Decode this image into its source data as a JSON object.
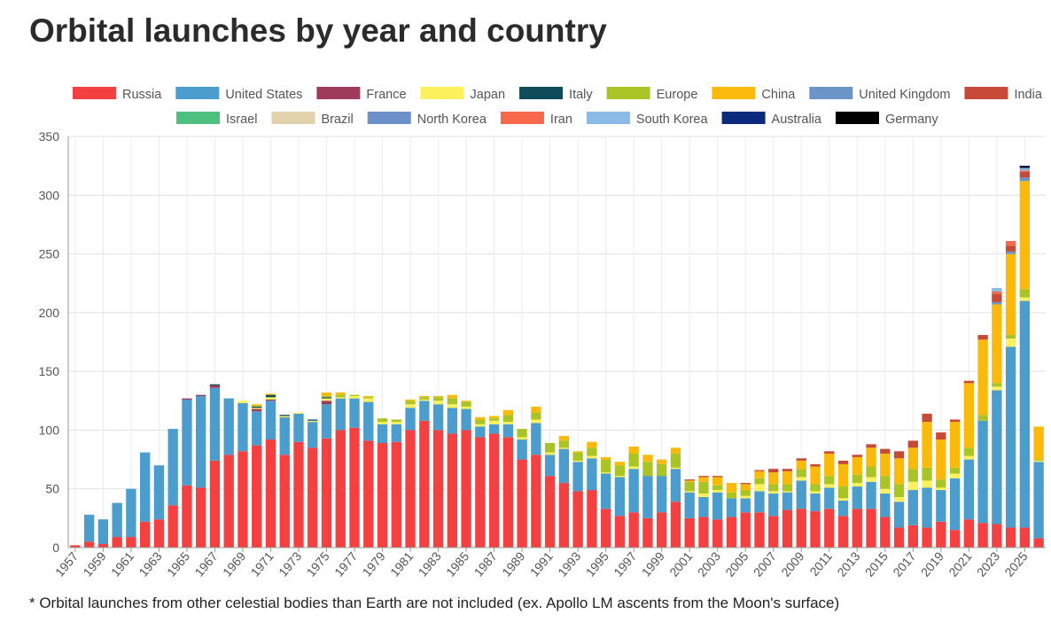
{
  "title": "Orbital launches by year and country",
  "footnote": "* Orbital launches from other celestial bodies than Earth are not included (ex. Apollo LM ascents from the Moon's surface)",
  "chart_data": {
    "type": "bar",
    "stacked": true,
    "x": [
      1957,
      1958,
      1959,
      1960,
      1961,
      1962,
      1963,
      1964,
      1965,
      1966,
      1967,
      1968,
      1969,
      1970,
      1971,
      1972,
      1973,
      1974,
      1975,
      1976,
      1977,
      1978,
      1979,
      1980,
      1981,
      1982,
      1983,
      1984,
      1985,
      1986,
      1987,
      1988,
      1989,
      1990,
      1991,
      1992,
      1993,
      1994,
      1995,
      1996,
      1997,
      1998,
      1999,
      2000,
      2001,
      2002,
      2003,
      2004,
      2005,
      2006,
      2007,
      2008,
      2009,
      2010,
      2011,
      2012,
      2013,
      2014,
      2015,
      2016,
      2017,
      2018,
      2019,
      2020,
      2021,
      2022,
      2023,
      2024,
      2025,
      2026
    ],
    "x_tick_labels": [
      "1957",
      "1959",
      "1961",
      "1963",
      "1965",
      "1967",
      "1969",
      "1971",
      "1973",
      "1975",
      "1977",
      "1979",
      "1981",
      "1983",
      "1985",
      "1987",
      "1989",
      "1991",
      "1993",
      "1995",
      "1997",
      "1999",
      "2001",
      "2003",
      "2005",
      "2007",
      "2009",
      "2011",
      "2013",
      "2015",
      "2017",
      "2019",
      "2021",
      "2023",
      "2025"
    ],
    "ylim": [
      0,
      350
    ],
    "y_ticks": [
      0,
      50,
      100,
      150,
      200,
      250,
      300,
      350
    ],
    "grid": true,
    "legend_position": "top",
    "xlabel": "",
    "ylabel": "",
    "series": [
      {
        "name": "Russia",
        "color": "#f44040",
        "values": [
          2,
          5,
          3,
          9,
          9,
          22,
          24,
          36,
          53,
          51,
          74,
          79,
          82,
          87,
          92,
          79,
          90,
          85,
          93,
          100,
          102,
          91,
          89,
          90,
          100,
          108,
          100,
          97,
          100,
          94,
          97,
          94,
          75,
          79,
          61,
          55,
          48,
          49,
          33,
          27,
          30,
          25,
          30,
          39,
          25,
          26,
          24,
          26,
          30,
          30,
          27,
          32,
          33,
          31,
          33,
          27,
          33,
          33,
          26,
          17,
          19,
          17,
          22,
          15,
          24,
          21,
          20,
          17,
          17,
          8
        ]
      },
      {
        "name": "United States",
        "color": "#4b9dcd",
        "values": [
          0,
          23,
          21,
          29,
          41,
          59,
          46,
          65,
          73,
          78,
          62,
          48,
          41,
          29,
          33,
          32,
          24,
          22,
          29,
          27,
          25,
          33,
          16,
          15,
          19,
          17,
          22,
          22,
          18,
          9,
          8,
          11,
          17,
          27,
          18,
          29,
          25,
          27,
          30,
          33,
          37,
          36,
          31,
          28,
          22,
          17,
          23,
          16,
          12,
          18,
          19,
          15,
          24,
          15,
          18,
          13,
          19,
          23,
          20,
          22,
          30,
          34,
          27,
          44,
          51,
          87,
          114,
          154,
          193,
          65
        ]
      },
      {
        "name": "France",
        "color": "#9e3a5a",
        "values": [
          0,
          0,
          0,
          0,
          0,
          0,
          0,
          0,
          1,
          1,
          2,
          0,
          0,
          2,
          1,
          0,
          0,
          0,
          3,
          0,
          0,
          0,
          0,
          0,
          0,
          0,
          0,
          0,
          0,
          0,
          0,
          0,
          0,
          0,
          0,
          0,
          0,
          0,
          0,
          0,
          0,
          0,
          0,
          0,
          0,
          0,
          0,
          0,
          0,
          0,
          0,
          0,
          0,
          0,
          0,
          0,
          0,
          0,
          0,
          0,
          0,
          0,
          0,
          0,
          0,
          0,
          0,
          0,
          0,
          0
        ]
      },
      {
        "name": "Japan",
        "color": "#fcf15b",
        "values": [
          0,
          0,
          0,
          0,
          0,
          0,
          0,
          0,
          0,
          0,
          0,
          0,
          2,
          1,
          2,
          1,
          1,
          1,
          2,
          1,
          2,
          3,
          2,
          2,
          3,
          1,
          3,
          3,
          2,
          2,
          3,
          2,
          2,
          3,
          2,
          1,
          1,
          2,
          1,
          1,
          2,
          0,
          0,
          1,
          1,
          3,
          2,
          0,
          2,
          6,
          2,
          1,
          3,
          2,
          3,
          2,
          3,
          4,
          4,
          4,
          7,
          6,
          2,
          4,
          3,
          0,
          3,
          7,
          3,
          1
        ]
      },
      {
        "name": "Italy",
        "color": "#0e4c5a",
        "values": [
          0,
          0,
          0,
          0,
          0,
          0,
          0,
          0,
          0,
          0,
          1,
          0,
          0,
          1,
          2,
          1,
          0,
          1,
          1,
          0,
          0,
          0,
          0,
          0,
          0,
          0,
          0,
          0,
          0,
          0,
          0,
          0,
          0,
          0,
          0,
          0,
          0,
          0,
          0,
          0,
          0,
          0,
          0,
          0,
          0,
          0,
          0,
          0,
          0,
          0,
          0,
          0,
          0,
          0,
          0,
          0,
          0,
          0,
          0,
          0,
          0,
          0,
          0,
          0,
          0,
          0,
          0,
          0,
          0,
          0
        ]
      },
      {
        "name": "Europe",
        "color": "#aac425",
        "values": [
          0,
          0,
          0,
          0,
          0,
          0,
          0,
          0,
          0,
          0,
          0,
          0,
          0,
          1,
          0,
          0,
          0,
          0,
          1,
          2,
          1,
          1,
          3,
          2,
          3,
          2,
          3,
          5,
          4,
          4,
          2,
          6,
          7,
          6,
          8,
          6,
          7,
          7,
          11,
          9,
          11,
          12,
          10,
          12,
          8,
          10,
          4,
          5,
          5,
          5,
          6,
          6,
          7,
          6,
          7,
          10,
          7,
          9,
          11,
          11,
          11,
          11,
          7,
          5,
          7,
          5,
          3,
          3,
          7,
          1
        ]
      },
      {
        "name": "China",
        "color": "#fbba0a",
        "values": [
          0,
          0,
          0,
          0,
          0,
          0,
          0,
          0,
          0,
          0,
          0,
          0,
          0,
          1,
          1,
          0,
          0,
          0,
          3,
          2,
          0,
          1,
          0,
          0,
          1,
          1,
          1,
          3,
          1,
          2,
          2,
          4,
          0,
          5,
          0,
          4,
          1,
          5,
          2,
          3,
          6,
          6,
          4,
          5,
          1,
          4,
          7,
          8,
          5,
          6,
          10,
          11,
          7,
          15,
          19,
          19,
          15,
          16,
          19,
          22,
          18,
          39,
          34,
          39,
          55,
          64,
          67,
          69,
          92,
          28
        ]
      },
      {
        "name": "United Kingdom",
        "color": "#6b95c6",
        "values": [
          0,
          0,
          0,
          0,
          0,
          0,
          0,
          0,
          0,
          0,
          0,
          0,
          0,
          0,
          0,
          0,
          0,
          0,
          0,
          0,
          0,
          0,
          0,
          0,
          0,
          0,
          0,
          0,
          0,
          0,
          0,
          0,
          0,
          0,
          0,
          0,
          0,
          0,
          0,
          0,
          0,
          0,
          0,
          0,
          0,
          0,
          0,
          0,
          0,
          0,
          0,
          0,
          0,
          0,
          0,
          0,
          0,
          0,
          0,
          0,
          0,
          0,
          0,
          0,
          0,
          0,
          2,
          2,
          3,
          0
        ]
      },
      {
        "name": "India",
        "color": "#c64a37",
        "values": [
          0,
          0,
          0,
          0,
          0,
          0,
          0,
          0,
          0,
          0,
          0,
          0,
          0,
          0,
          0,
          0,
          0,
          0,
          0,
          0,
          0,
          0,
          0,
          0,
          0,
          0,
          0,
          0,
          0,
          0,
          0,
          0,
          0,
          0,
          0,
          0,
          0,
          0,
          0,
          0,
          0,
          0,
          0,
          0,
          1,
          1,
          1,
          0,
          1,
          1,
          3,
          2,
          2,
          2,
          2,
          3,
          2,
          3,
          4,
          6,
          6,
          7,
          6,
          2,
          2,
          4,
          7,
          5,
          5,
          0
        ]
      },
      {
        "name": "Israel",
        "color": "#4dbf7f",
        "values": [
          0,
          0,
          0,
          0,
          0,
          0,
          0,
          0,
          0,
          0,
          0,
          0,
          0,
          0,
          0,
          0,
          0,
          0,
          0,
          0,
          0,
          0,
          0,
          0,
          0,
          0,
          0,
          0,
          0,
          0,
          0,
          0,
          0,
          0,
          0,
          0,
          0,
          0,
          0,
          0,
          0,
          0,
          0,
          0,
          0,
          0,
          0,
          0,
          0,
          0,
          0,
          0,
          0,
          0,
          0,
          0,
          0,
          0,
          0,
          0,
          0,
          0,
          0,
          0,
          0,
          0,
          0,
          0,
          0,
          0
        ]
      },
      {
        "name": "Brazil",
        "color": "#e2d3ad",
        "values": [
          0,
          0,
          0,
          0,
          0,
          0,
          0,
          0,
          0,
          0,
          0,
          0,
          0,
          0,
          0,
          0,
          0,
          0,
          0,
          0,
          0,
          0,
          0,
          0,
          0,
          0,
          0,
          0,
          0,
          0,
          0,
          0,
          0,
          0,
          0,
          0,
          0,
          0,
          0,
          0,
          0,
          0,
          0,
          0,
          0,
          0,
          0,
          0,
          0,
          0,
          0,
          0,
          0,
          0,
          0,
          0,
          0,
          0,
          0,
          0,
          0,
          0,
          0,
          0,
          0,
          0,
          0,
          0,
          0,
          0
        ]
      },
      {
        "name": "North Korea",
        "color": "#6b91c8",
        "values": [
          0,
          0,
          0,
          0,
          0,
          0,
          0,
          0,
          0,
          0,
          0,
          0,
          0,
          0,
          0,
          0,
          0,
          0,
          0,
          0,
          0,
          0,
          0,
          0,
          0,
          0,
          0,
          0,
          0,
          0,
          0,
          0,
          0,
          0,
          0,
          0,
          0,
          0,
          0,
          0,
          0,
          0,
          0,
          0,
          0,
          0,
          0,
          0,
          0,
          0,
          0,
          0,
          0,
          0,
          0,
          0,
          0,
          0,
          0,
          0,
          0,
          0,
          0,
          0,
          0,
          0,
          0,
          0,
          0,
          0
        ]
      },
      {
        "name": "Iran",
        "color": "#f7694a",
        "values": [
          0,
          0,
          0,
          0,
          0,
          0,
          0,
          0,
          0,
          0,
          0,
          0,
          0,
          0,
          0,
          0,
          0,
          0,
          0,
          0,
          0,
          0,
          0,
          0,
          0,
          0,
          0,
          0,
          0,
          0,
          0,
          0,
          0,
          0,
          0,
          0,
          0,
          0,
          0,
          0,
          0,
          0,
          0,
          0,
          0,
          0,
          0,
          0,
          0,
          0,
          0,
          0,
          0,
          0,
          0,
          0,
          0,
          0,
          0,
          0,
          0,
          0,
          0,
          0,
          0,
          0,
          2,
          4,
          1,
          0
        ]
      },
      {
        "name": "South Korea",
        "color": "#8bbae6",
        "values": [
          0,
          0,
          0,
          0,
          0,
          0,
          0,
          0,
          0,
          0,
          0,
          0,
          0,
          0,
          0,
          0,
          0,
          0,
          0,
          0,
          0,
          0,
          0,
          0,
          0,
          0,
          0,
          0,
          0,
          0,
          0,
          0,
          0,
          0,
          0,
          0,
          0,
          0,
          0,
          0,
          0,
          0,
          0,
          0,
          0,
          0,
          0,
          0,
          0,
          0,
          0,
          0,
          0,
          0,
          0,
          0,
          0,
          0,
          0,
          0,
          0,
          0,
          0,
          0,
          0,
          0,
          3,
          0,
          2,
          0
        ]
      },
      {
        "name": "Australia",
        "color": "#0a2a7e",
        "values": [
          0,
          0,
          0,
          0,
          0,
          0,
          0,
          0,
          0,
          0,
          0,
          0,
          0,
          0,
          0,
          0,
          0,
          0,
          0,
          0,
          0,
          0,
          0,
          0,
          0,
          0,
          0,
          0,
          0,
          0,
          0,
          0,
          0,
          0,
          0,
          0,
          0,
          0,
          0,
          0,
          0,
          0,
          0,
          0,
          0,
          0,
          0,
          0,
          0,
          0,
          0,
          0,
          0,
          0,
          0,
          0,
          0,
          0,
          0,
          0,
          0,
          0,
          0,
          0,
          0,
          0,
          0,
          0,
          1,
          0
        ]
      },
      {
        "name": "Germany",
        "color": "#000000",
        "values": [
          0,
          0,
          0,
          0,
          0,
          0,
          0,
          0,
          0,
          0,
          0,
          0,
          0,
          0,
          0,
          0,
          0,
          0,
          0,
          0,
          0,
          0,
          0,
          0,
          0,
          0,
          0,
          0,
          0,
          0,
          0,
          0,
          0,
          0,
          0,
          0,
          0,
          0,
          0,
          0,
          0,
          0,
          0,
          0,
          0,
          0,
          0,
          0,
          0,
          0,
          0,
          0,
          0,
          0,
          0,
          0,
          0,
          0,
          0,
          0,
          0,
          0,
          0,
          0,
          0,
          0,
          0,
          0,
          1,
          0
        ]
      }
    ]
  }
}
